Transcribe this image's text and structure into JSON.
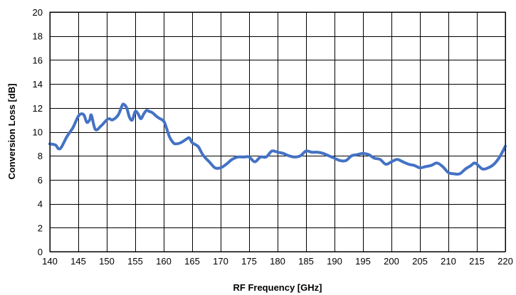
{
  "chart_data": {
    "type": "line",
    "xlabel": "RF Frequency [GHz]",
    "ylabel": "Conversion Loss [dB]",
    "xlim": [
      140,
      220
    ],
    "ylim": [
      0,
      20
    ],
    "xticks": [
      140,
      145,
      150,
      155,
      160,
      165,
      170,
      175,
      180,
      185,
      190,
      195,
      200,
      205,
      210,
      215,
      220
    ],
    "yticks": [
      0,
      2,
      4,
      6,
      8,
      10,
      12,
      14,
      16,
      18,
      20
    ],
    "grid": true,
    "color": "#4472C4",
    "series": [
      {
        "x": [
          140,
          141,
          141.5,
          142,
          143,
          144,
          144.5,
          145,
          145.5,
          146,
          146.5,
          147,
          147.3,
          148,
          149,
          150,
          150.5,
          151,
          152,
          152.7,
          153,
          153.5,
          154,
          154.5,
          155,
          155.5,
          156,
          156.5,
          157,
          157.5,
          158,
          159,
          160,
          160.5,
          161,
          161.5,
          162,
          163,
          164,
          164.5,
          165,
          166,
          166.5,
          167,
          168,
          169,
          170,
          171,
          172,
          173,
          174,
          175,
          176,
          177,
          178,
          179,
          180,
          181,
          182,
          183,
          184,
          185,
          186,
          187,
          188,
          189,
          190,
          191,
          192,
          193,
          194,
          195,
          196,
          197,
          198,
          199,
          200,
          201,
          202,
          203,
          204,
          205,
          206,
          207,
          208,
          209,
          210,
          211,
          212,
          213,
          214,
          214.5,
          215,
          216,
          217,
          218,
          219,
          220
        ],
        "y": [
          9.0,
          8.9,
          8.6,
          8.7,
          9.6,
          10.3,
          10.8,
          11.3,
          11.5,
          11.4,
          10.8,
          11.0,
          11.4,
          10.2,
          10.5,
          11.0,
          11.1,
          11.0,
          11.4,
          12.2,
          12.3,
          12.0,
          11.2,
          11.0,
          11.7,
          11.5,
          11.1,
          11.5,
          11.8,
          11.7,
          11.6,
          11.2,
          10.9,
          10.3,
          9.6,
          9.2,
          9.0,
          9.1,
          9.4,
          9.5,
          9.1,
          8.8,
          8.4,
          8.0,
          7.5,
          7.0,
          7.0,
          7.3,
          7.7,
          7.9,
          7.9,
          7.9,
          7.5,
          7.9,
          7.9,
          8.4,
          8.3,
          8.2,
          8.0,
          7.9,
          8.0,
          8.4,
          8.3,
          8.3,
          8.2,
          8.0,
          7.8,
          7.6,
          7.6,
          8.0,
          8.1,
          8.2,
          8.1,
          7.8,
          7.7,
          7.3,
          7.5,
          7.7,
          7.5,
          7.3,
          7.2,
          7.0,
          7.1,
          7.2,
          7.4,
          7.1,
          6.6,
          6.5,
          6.5,
          6.9,
          7.2,
          7.4,
          7.3,
          6.9,
          7.0,
          7.3,
          7.9,
          8.8
        ]
      }
    ]
  }
}
